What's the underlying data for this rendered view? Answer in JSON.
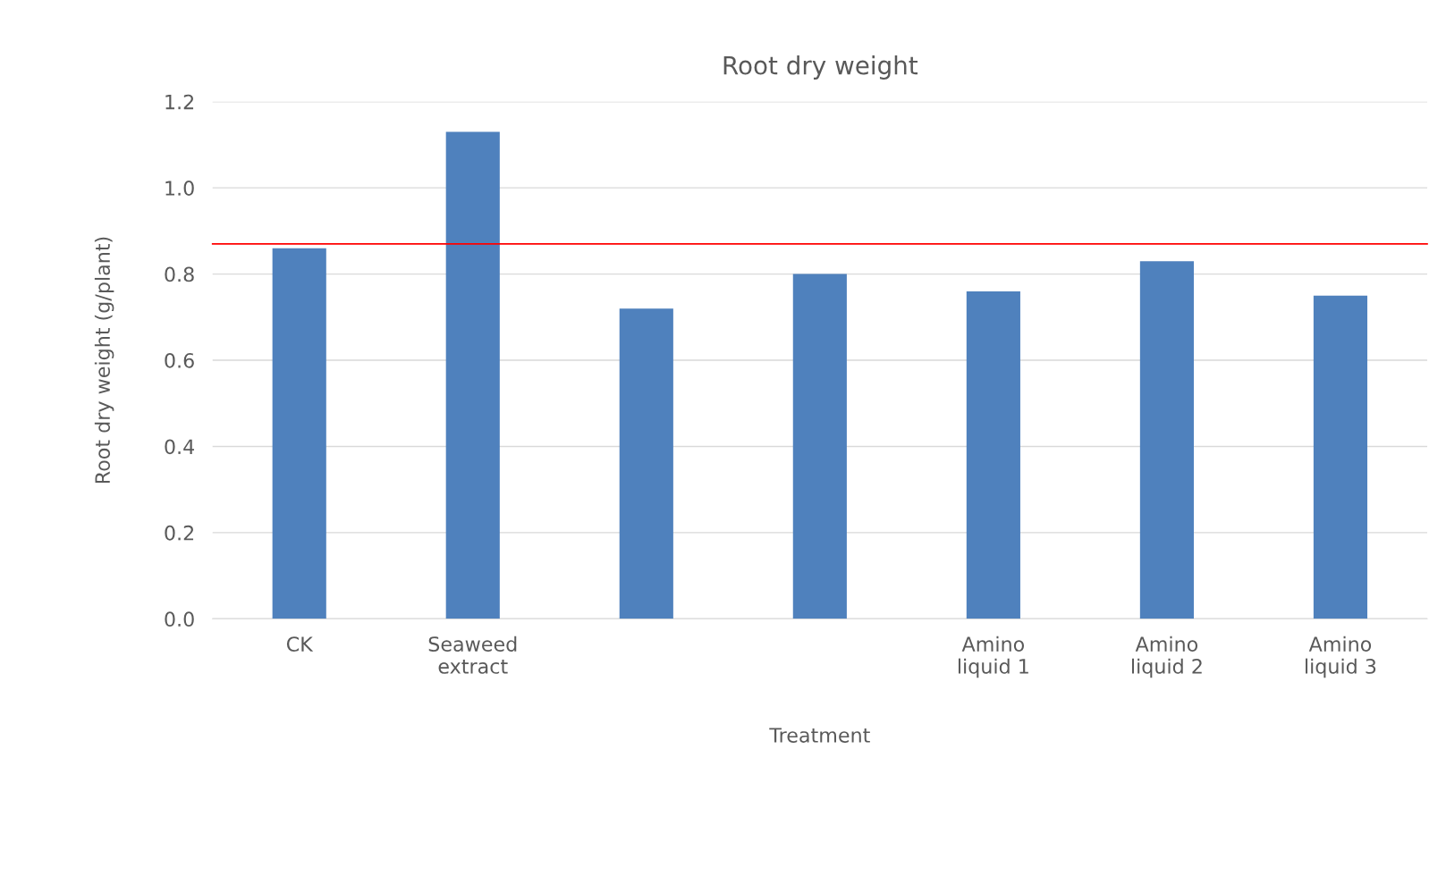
{
  "chart_data": {
    "type": "bar",
    "title": "Root dry weight",
    "xlabel": "Treatment",
    "ylabel": "Root dry weight (g/plant)",
    "categories": [
      "CK",
      "Seaweed extract",
      null,
      null,
      "Amino liquid 1",
      "Amino liquid 2",
      "Amino liquid 3"
    ],
    "values": [
      0.86,
      1.13,
      0.72,
      0.8,
      0.76,
      0.83,
      0.75
    ],
    "color": "#4f81bd",
    "ylim": [
      0,
      1.2
    ],
    "yticks": [
      {
        "value": 0,
        "label": "0.0"
      },
      {
        "value": 0.2,
        "label": "0.2"
      },
      {
        "value": 0.4,
        "label": "0.4"
      },
      {
        "value": 0.6,
        "label": "0.6"
      },
      {
        "value": 0.8,
        "label": "0.8"
      },
      {
        "value": 1.0,
        "label": "1.0"
      },
      {
        "value": 1.2,
        "label": "1.2"
      }
    ],
    "grid": "y",
    "legend": false,
    "ref_lines": [
      {
        "axis": "y",
        "value": 0.87,
        "label": null,
        "color": "#ff0000"
      }
    ]
  }
}
